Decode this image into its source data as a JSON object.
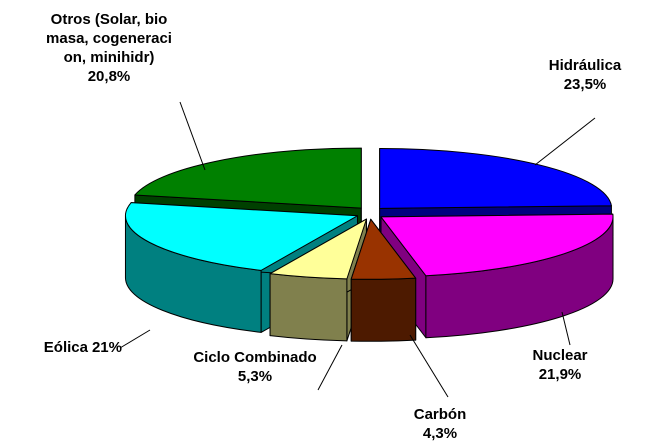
{
  "chart_data": {
    "type": "pie3d",
    "categories": [
      "Hidráulica",
      "Nuclear",
      "Carbón",
      "Ciclo Combinado",
      "Eólica",
      "Otros (Solar, biomasa, cogeneracion, minihidr)"
    ],
    "values": [
      23.5,
      21.9,
      4.3,
      5.3,
      21,
      20.8
    ],
    "value_labels": [
      "23,5%",
      "21,9%",
      "4,3%",
      "5,3%",
      "21%",
      "20,8%"
    ],
    "colors": [
      "#0000ff",
      "#ff00ff",
      "#993300",
      "#ffff99",
      "#00ffff",
      "#008000"
    ]
  }
}
